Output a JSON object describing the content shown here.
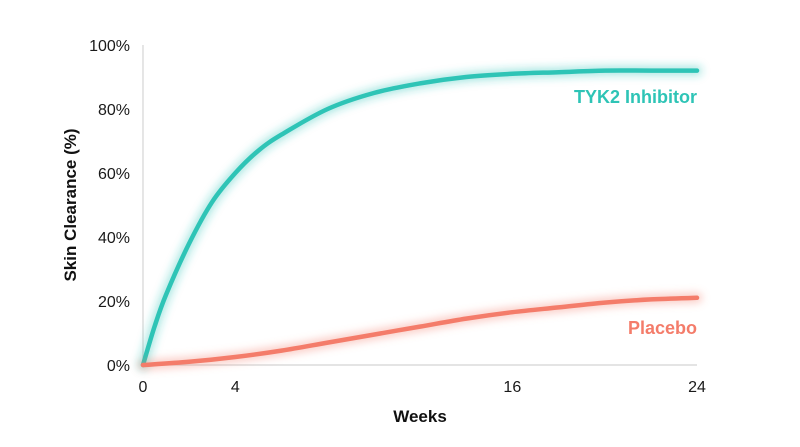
{
  "chart_data": {
    "type": "line",
    "xlabel": "Weeks",
    "ylabel": "Skin Clearance (%)",
    "xlim": [
      0,
      24
    ],
    "ylim": [
      0,
      100
    ],
    "x_ticks": [
      0,
      4,
      16,
      24
    ],
    "y_ticks": [
      0,
      20,
      40,
      60,
      80,
      100
    ],
    "y_tick_suffix": "%",
    "grid": false,
    "series": [
      {
        "name": "TYK2 Inhibitor",
        "color": "#2ec4b6",
        "x": [
          0,
          0.5,
          1,
          2,
          3,
          4,
          5,
          6,
          8,
          10,
          12,
          14,
          16,
          18,
          20,
          22,
          24
        ],
        "y": [
          0,
          12,
          22,
          38,
          51,
          60,
          67,
          72,
          80,
          85,
          88,
          90,
          91,
          91.5,
          92,
          92,
          92
        ]
      },
      {
        "name": "Placebo",
        "color": "#f47c6a",
        "x": [
          0,
          2,
          4,
          6,
          8,
          10,
          12,
          14,
          16,
          18,
          20,
          22,
          24
        ],
        "y": [
          0,
          1,
          2.5,
          4.5,
          7,
          9.5,
          12,
          14.5,
          16.5,
          18,
          19.5,
          20.5,
          21
        ]
      }
    ]
  }
}
